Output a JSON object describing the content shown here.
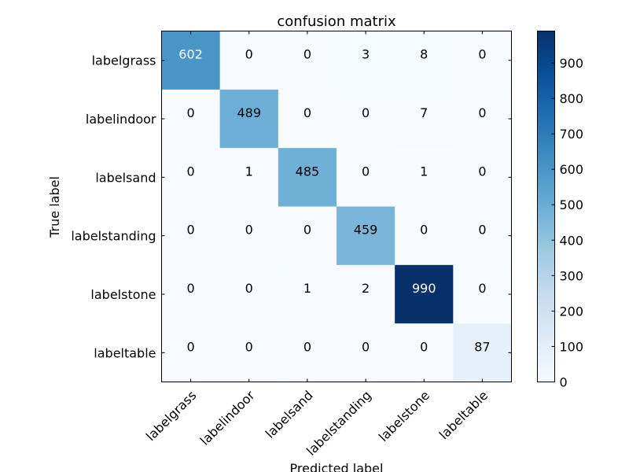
{
  "chart_data": {
    "type": "heatmap",
    "title": "confusion matrix",
    "xlabel": "Predicted label",
    "ylabel": "True label",
    "x_categories": [
      "labelgrass",
      "labelindoor",
      "labelsand",
      "labelstanding",
      "labelstone",
      "labeltable"
    ],
    "y_categories": [
      "labelgrass",
      "labelindoor",
      "labelsand",
      "labelstanding",
      "labelstone",
      "labeltable"
    ],
    "values": [
      [
        602,
        0,
        0,
        3,
        8,
        0
      ],
      [
        0,
        489,
        0,
        0,
        7,
        0
      ],
      [
        0,
        1,
        485,
        0,
        1,
        0
      ],
      [
        0,
        0,
        0,
        459,
        0,
        0
      ],
      [
        0,
        0,
        1,
        2,
        990,
        0
      ],
      [
        0,
        0,
        0,
        0,
        0,
        87
      ]
    ],
    "colorbar": {
      "range": [
        0,
        990
      ],
      "ticks": [
        0,
        100,
        200,
        300,
        400,
        500,
        600,
        700,
        800,
        900
      ],
      "colormap": "Blues"
    },
    "tick_label_rotation_deg": 45
  }
}
